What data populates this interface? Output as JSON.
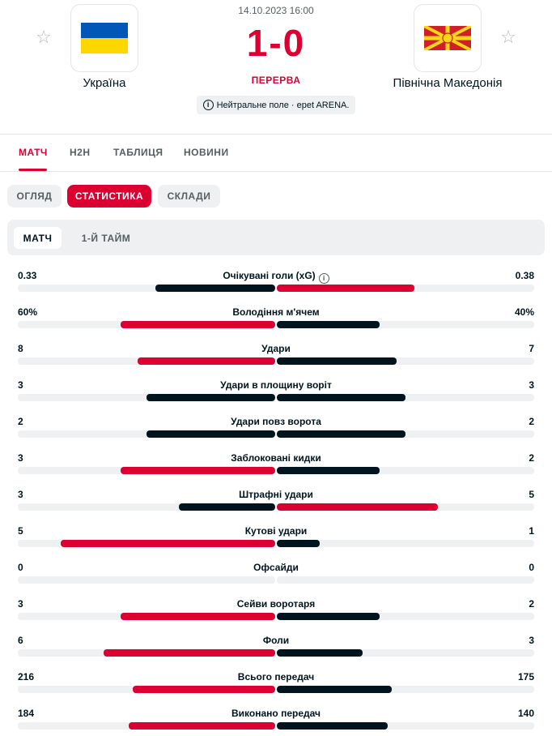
{
  "header": {
    "date": "14.10.2023 16:00",
    "score": "1-0",
    "status": "ПЕРЕРВА",
    "venue": "Нейтральне поле · epet ARENA.",
    "home_team": "Україна",
    "away_team": "Північна Македонія",
    "home_flag": "ukraine-flag",
    "away_flag": "north-macedonia-flag",
    "favorite_icon": "star-icon"
  },
  "nav": {
    "tabs": [
      {
        "label": "МАТЧ",
        "active": true
      },
      {
        "label": "H2H",
        "active": false
      },
      {
        "label": "ТАБЛИЦЯ",
        "active": false
      },
      {
        "label": "НОВИНИ",
        "active": false
      }
    ]
  },
  "subtabs": [
    {
      "label": "ОГЛЯД",
      "active": false
    },
    {
      "label": "СТАТИСТИКА",
      "active": true
    },
    {
      "label": "СКЛАДИ",
      "active": false
    }
  ],
  "periods": [
    {
      "label": "МАТЧ",
      "active": true
    },
    {
      "label": "1-Й ТАЙМ",
      "active": false
    }
  ],
  "colors": {
    "accent": "#dc0032",
    "dark": "#00141e",
    "track": "#eef0f1"
  },
  "stats": [
    {
      "name": "Очікувані голи (xG)",
      "home": "0.33",
      "away": "0.38",
      "h": 0.33,
      "a": 0.38,
      "info": true
    },
    {
      "name": "Володіння м'ячем",
      "home": "60%",
      "away": "40%",
      "h": 60,
      "a": 40
    },
    {
      "name": "Удари",
      "home": "8",
      "away": "7",
      "h": 8,
      "a": 7
    },
    {
      "name": "Удари в площину воріт",
      "home": "3",
      "away": "3",
      "h": 3,
      "a": 3
    },
    {
      "name": "Удари повз ворота",
      "home": "2",
      "away": "2",
      "h": 2,
      "a": 2
    },
    {
      "name": "Заблоковані кидки",
      "home": "3",
      "away": "2",
      "h": 3,
      "a": 2
    },
    {
      "name": "Штрафні удари",
      "home": "3",
      "away": "5",
      "h": 3,
      "a": 5
    },
    {
      "name": "Кутові удари",
      "home": "5",
      "away": "1",
      "h": 5,
      "a": 1
    },
    {
      "name": "Офсайди",
      "home": "0",
      "away": "0",
      "h": 0,
      "a": 0
    },
    {
      "name": "Сейви воротаря",
      "home": "3",
      "away": "2",
      "h": 3,
      "a": 2
    },
    {
      "name": "Фоли",
      "home": "6",
      "away": "3",
      "h": 6,
      "a": 3
    },
    {
      "name": "Всього передач",
      "home": "216",
      "away": "175",
      "h": 216,
      "a": 175
    },
    {
      "name": "Виконано передач",
      "home": "184",
      "away": "140",
      "h": 184,
      "a": 140
    }
  ]
}
